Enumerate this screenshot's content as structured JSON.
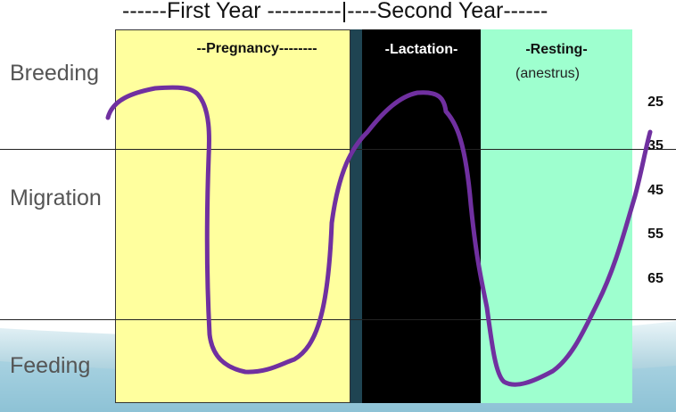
{
  "header": {
    "title": "------First Year ----------|----Second Year------"
  },
  "phases": {
    "pregnancy": "--Pregnancy--------",
    "lactation": "-Lactation-",
    "resting": "-Resting-",
    "resting_sub": "(anestrus)"
  },
  "categories": {
    "breeding": "Breeding",
    "migration": "Migration",
    "feeding": "Feeding"
  },
  "scale": {
    "ticks": [
      "25",
      "35",
      "45",
      "55",
      "65"
    ]
  },
  "colors": {
    "pregnancy_band": "#ffff9e",
    "lactation_band": "#000000",
    "separator_band": "#1f4452",
    "resting_band": "#9effcf",
    "curve": "#7030a0"
  }
}
